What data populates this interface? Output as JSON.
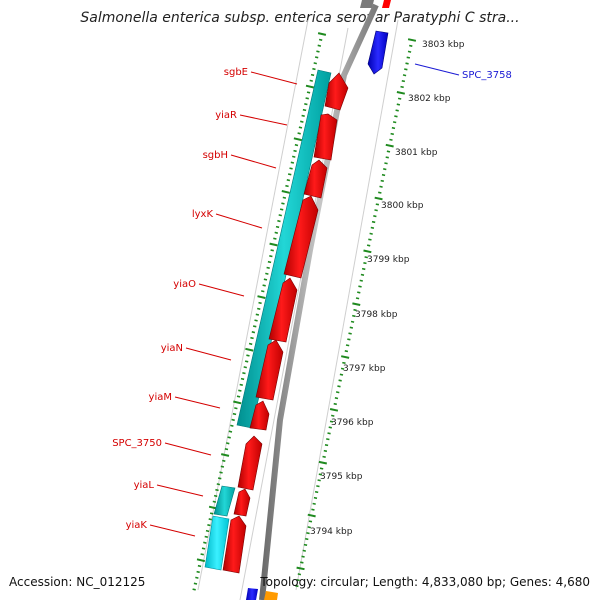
{
  "title": "Salmonella enterica subsp. enterica serovar Paratyphi C stra...",
  "footer": {
    "accession": "Accession: NC_012125",
    "topology": "Topology: circular; Length: 4,833,080 bp; Genes: 4,680"
  },
  "ruler": {
    "labels": [
      "3803 kbp",
      "3802 kbp",
      "3801 kbp",
      "3800 kbp",
      "3799 kbp",
      "3798 kbp",
      "3797 kbp",
      "3796 kbp",
      "3795 kbp",
      "3794 kbp"
    ]
  },
  "genes_left": [
    {
      "name": "sgbE"
    },
    {
      "name": "yiaR"
    },
    {
      "name": "sgbH"
    },
    {
      "name": "lyxK"
    },
    {
      "name": "yiaO"
    },
    {
      "name": "yiaN"
    },
    {
      "name": "yiaM"
    },
    {
      "name": "SPC_3750"
    },
    {
      "name": "yiaL"
    },
    {
      "name": "yiaK"
    }
  ],
  "genes_right": [
    {
      "name": "SPC_3758"
    }
  ],
  "colors": {
    "cds": "#ff0000",
    "orf": "#00c8c8",
    "other_strand": "#1a1aff",
    "backbone": "#909090",
    "ticks": "#1f8a1f"
  }
}
